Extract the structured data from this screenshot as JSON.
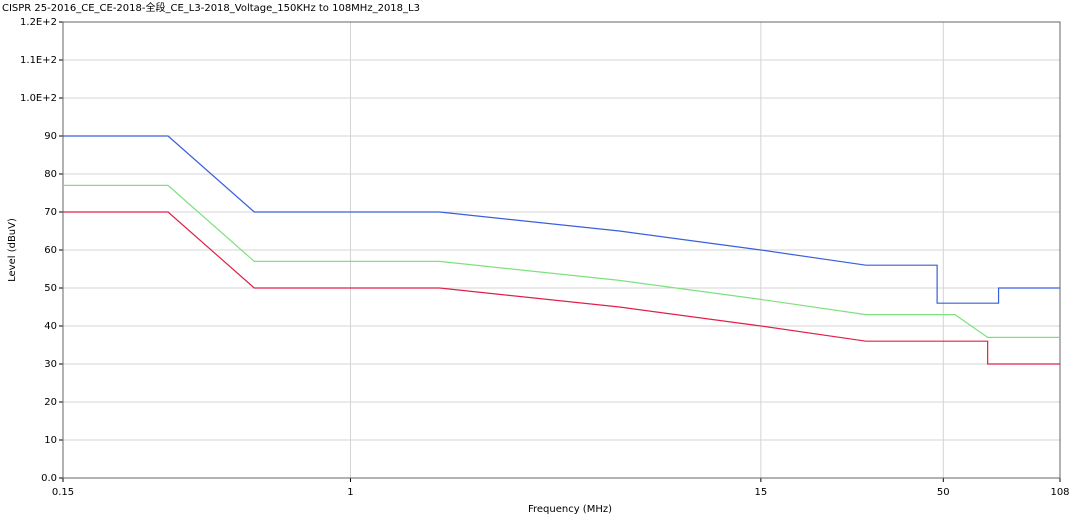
{
  "chart_data": {
    "type": "line",
    "title": "CISPR 25-2016_CE_CE-2018-全段_CE_L3-2018_Voltage_150KHz to 108MHz_2018_L3",
    "x_label": "Frequency (MHz)",
    "y_label": "Level (dBuV)",
    "x_log": true,
    "grid": true,
    "xlim": [
      0.15,
      108
    ],
    "xticks": [
      0.15,
      1,
      15,
      50,
      108
    ],
    "ylim": [
      0,
      120
    ],
    "yticks": [
      {
        "value": 0,
        "label": "0.0"
      },
      10,
      20,
      30,
      40,
      50,
      60,
      70,
      80,
      90,
      {
        "value": 100,
        "label": "1.0E+2"
      },
      {
        "value": 110,
        "label": "1.1E+2"
      },
      {
        "value": 120,
        "label": "1.2E+2"
      }
    ],
    "series": [
      {
        "color": "#3a5fdc",
        "x": [
          0.15,
          0.3,
          0.53,
          1.8,
          5.9,
          15,
          30,
          48,
          48,
          72,
          72,
          108
        ],
        "values": [
          90,
          90,
          70,
          70,
          65,
          60,
          56,
          56,
          46,
          46,
          50,
          50
        ]
      },
      {
        "color": "#7fe07f",
        "x": [
          0.15,
          0.3,
          0.53,
          1.8,
          5.9,
          15,
          30,
          54,
          67,
          108
        ],
        "values": [
          77,
          77,
          57,
          57,
          52,
          47,
          43,
          43,
          37,
          37
        ]
      },
      {
        "color": "#e0204a",
        "x": [
          0.15,
          0.3,
          0.53,
          1.8,
          5.9,
          15,
          30,
          67,
          67,
          108
        ],
        "values": [
          70,
          70,
          50,
          50,
          45,
          40,
          36,
          36,
          30,
          30
        ]
      }
    ]
  }
}
